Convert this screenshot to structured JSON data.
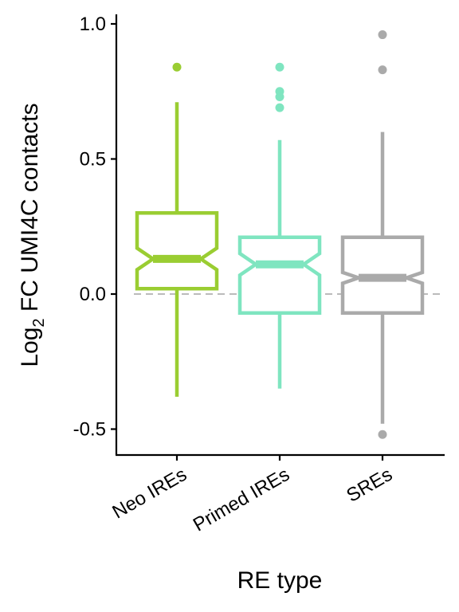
{
  "chart_data": {
    "type": "boxplot",
    "notched": true,
    "ylabel_prefix": "Log",
    "ylabel_sub": "2",
    "ylabel_rest": " FC UMI4C contacts",
    "xlabel": "RE type",
    "ylim": [
      -0.6,
      1.03
    ],
    "yticks": [
      {
        "value": -0.5,
        "label": "-0.5"
      },
      {
        "value": 0.0,
        "label": "0.0"
      },
      {
        "value": 0.5,
        "label": "0.5"
      },
      {
        "value": 1.0,
        "label": "1.0"
      }
    ],
    "reference_line": {
      "value": 0.0,
      "style": "dashed",
      "color": "#bbbbbb"
    },
    "grid": false,
    "categories": [
      "Neo IREs",
      "Primed IREs",
      "SREs"
    ],
    "groups": [
      {
        "name": "Neo IREs",
        "color": "#9acd32",
        "q1": 0.02,
        "median": 0.13,
        "q3": 0.3,
        "notch_low": 0.09,
        "notch_high": 0.17,
        "whisker_low": -0.38,
        "whisker_high": 0.71,
        "outliers": [
          0.84
        ]
      },
      {
        "name": "Primed IREs",
        "color": "#7fe5c0",
        "q1": -0.07,
        "median": 0.11,
        "q3": 0.21,
        "notch_low": 0.07,
        "notch_high": 0.15,
        "whisker_low": -0.35,
        "whisker_high": 0.57,
        "outliers": [
          0.84,
          0.75,
          0.73,
          0.69
        ]
      },
      {
        "name": "SREs",
        "color": "#aaaaaa",
        "q1": -0.07,
        "median": 0.06,
        "q3": 0.21,
        "notch_low": 0.04,
        "notch_high": 0.08,
        "whisker_low": -0.48,
        "whisker_high": 0.6,
        "outliers": [
          0.96,
          0.83,
          -0.52
        ]
      }
    ]
  }
}
